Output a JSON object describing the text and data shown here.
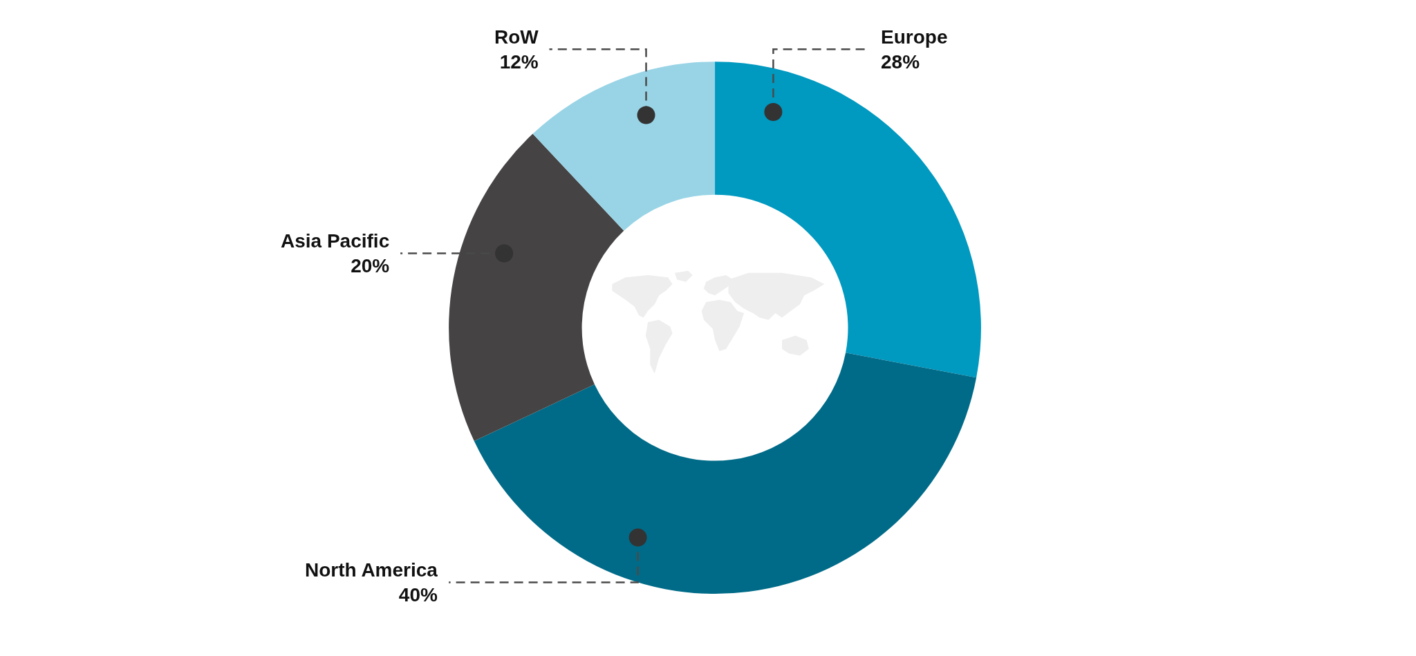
{
  "chart_data": {
    "type": "donut",
    "categories": [
      "Europe",
      "North America",
      "Asia Pacific",
      "RoW"
    ],
    "values": [
      28,
      40,
      20,
      12
    ],
    "colors": [
      "#0099c0",
      "#006b88",
      "#454344",
      "#98d4e6"
    ],
    "value_labels": [
      "28%",
      "40%",
      "20%",
      "12%"
    ]
  }
}
